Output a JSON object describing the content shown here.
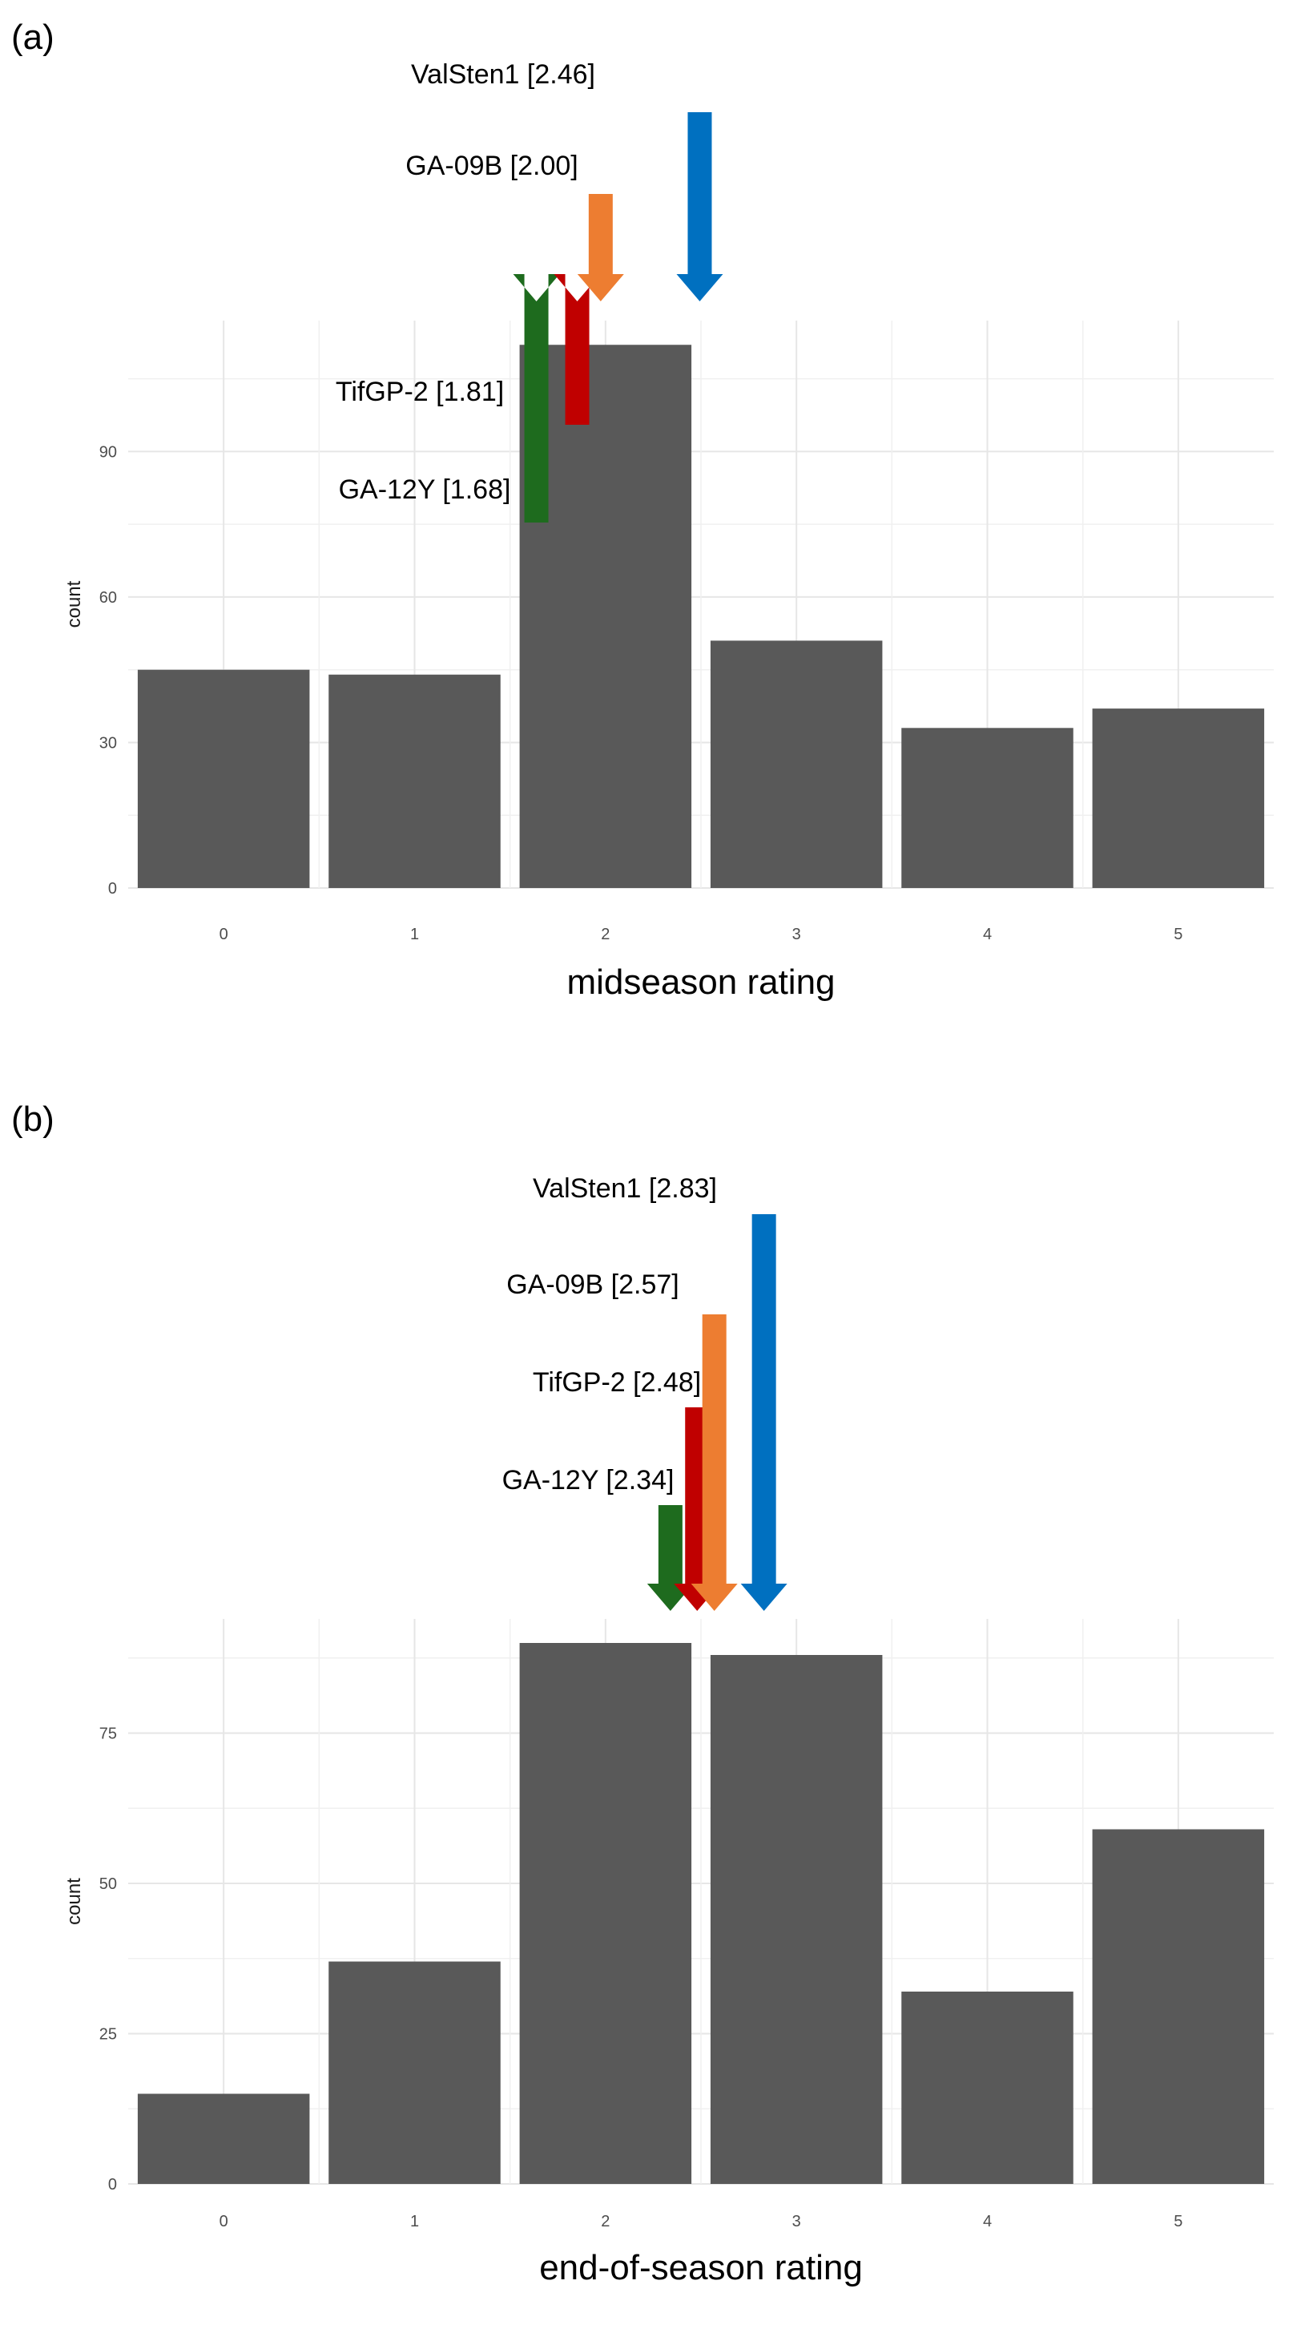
{
  "chart_data": [
    {
      "panel": "(a)",
      "type": "bar",
      "categories": [
        "0",
        "1",
        "2",
        "3",
        "4",
        "5"
      ],
      "values": [
        45,
        44,
        112,
        51,
        33,
        37
      ],
      "xlabel": "midseason rating",
      "ylabel": "count",
      "yticks": [
        0,
        30,
        60,
        90
      ],
      "ylim": [
        0,
        117
      ],
      "grid": true,
      "bar_color": "#595959",
      "annotations": [
        {
          "label": "GA-12Y [1.68]",
          "value": 1.68,
          "color": "#1e6b1e"
        },
        {
          "label": "TifGP-2 [1.81]",
          "value": 1.81,
          "color": "#c00000"
        },
        {
          "label": "GA-09B [2.00]",
          "value": 2.0,
          "color": "#ed7d31"
        },
        {
          "label": "ValSten1 [2.46]",
          "value": 2.46,
          "color": "#0070c0"
        }
      ]
    },
    {
      "panel": "(b)",
      "type": "bar",
      "categories": [
        "0",
        "1",
        "2",
        "3",
        "4",
        "5"
      ],
      "values": [
        15,
        37,
        90,
        88,
        32,
        59
      ],
      "xlabel": "end-of-season rating",
      "ylabel": "count",
      "yticks": [
        0,
        25,
        50,
        75
      ],
      "ylim": [
        0,
        94
      ],
      "grid": true,
      "bar_color": "#595959",
      "annotations": [
        {
          "label": "GA-12Y [2.34]",
          "value": 2.34,
          "color": "#1e6b1e"
        },
        {
          "label": "TifGP-2 [2.48]",
          "value": 2.48,
          "color": "#c00000"
        },
        {
          "label": "GA-09B [2.57]",
          "value": 2.57,
          "color": "#ed7d31"
        },
        {
          "label": "ValSten1 [2.83]",
          "value": 2.83,
          "color": "#0070c0"
        }
      ]
    }
  ]
}
